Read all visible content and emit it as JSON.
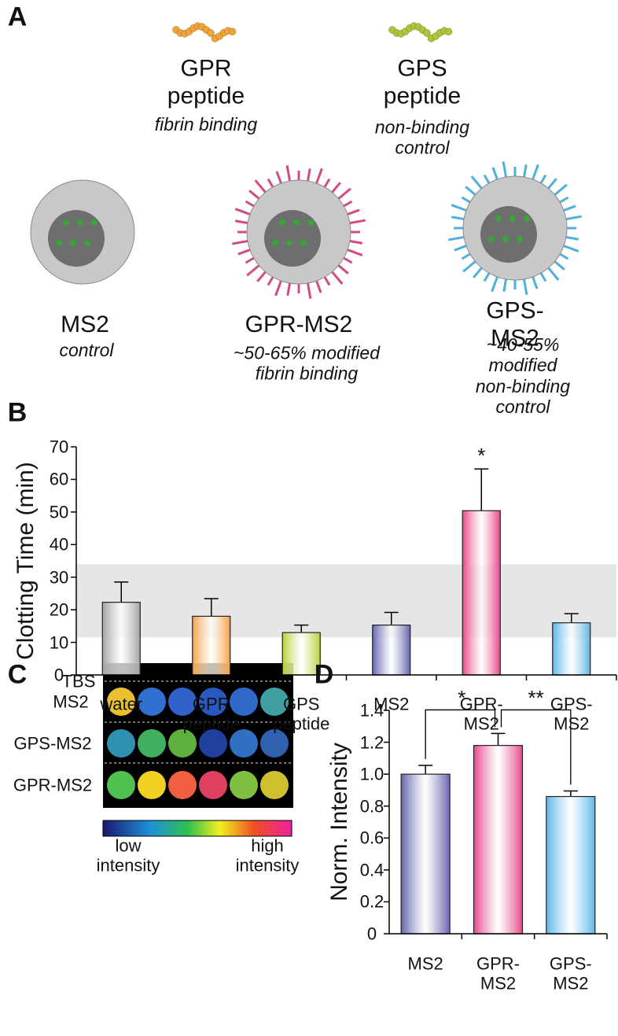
{
  "panel_labels": [
    "A",
    "B",
    "C",
    "D"
  ],
  "peptides": [
    {
      "name": "GPR\npeptide",
      "note": "fibrin binding",
      "color": "#f2a33a"
    },
    {
      "name": "GPS\npeptide",
      "note": "non-binding\ncontrol",
      "color": "#a8c83a"
    }
  ],
  "particles": [
    {
      "name": "MS2",
      "note": "control",
      "color": null
    },
    {
      "name": "GPR-MS2",
      "note": "~50-65% modified\nfibrin binding",
      "color": "#d24a86"
    },
    {
      "name": "GPS-MS2",
      "note": "~40-55% modified\nnon-binding\ncontrol",
      "color": "#4fb0dc"
    }
  ],
  "imaging": {
    "rows": [
      "TBS",
      "MS2",
      "GPS-MS2",
      "GPR-MS2"
    ],
    "scale_low": "low\nintensity",
    "scale_high": "high\nintensity"
  },
  "chart_data": [
    {
      "type": "bar",
      "ylabel": "Clotting Time (min)",
      "categories": [
        "water",
        "GPR\npeptide",
        "GPS\npeptide",
        "MS2",
        "GPR-\nMS2",
        "GPS-\nMS2"
      ],
      "values": [
        22.3,
        18,
        13,
        15.3,
        50.4,
        16
      ],
      "errors": [
        6.2,
        5.4,
        2.3,
        3.9,
        12.8,
        2.8
      ],
      "colors": [
        "#a3a3a3",
        "#f7a347",
        "#b6d33a",
        "#6565ae",
        "#e8488c",
        "#5cb6e8"
      ],
      "significance": [
        null,
        null,
        null,
        null,
        "*",
        null
      ],
      "band": [
        11.5,
        34
      ],
      "ylim": [
        0,
        70
      ],
      "yticks": [
        0,
        10,
        20,
        30,
        40,
        50,
        60,
        70
      ]
    },
    {
      "type": "bar",
      "ylabel": "Norm. Intensity",
      "categories": [
        "MS2",
        "GPR-\nMS2",
        "GPS-\nMS2"
      ],
      "values": [
        1.0,
        1.18,
        0.86
      ],
      "errors": [
        0.055,
        0.075,
        0.035
      ],
      "colors": [
        "#6565ae",
        "#e8488c",
        "#5cb6e8"
      ],
      "brackets": [
        {
          "label": "*"
        },
        {
          "label": "**"
        }
      ],
      "ylim": [
        0,
        1.4
      ],
      "yticks": [
        0,
        {
          "value": 0.2,
          "label": "0.2"
        },
        {
          "value": 0.4,
          "label": "0.4"
        },
        {
          "value": 0.6,
          "label": "0.6"
        },
        {
          "value": 0.8,
          "label": "0.8"
        },
        {
          "value": 1,
          "label": "1.0"
        },
        {
          "value": 1.2,
          "label": "1.2"
        },
        {
          "value": 1.4,
          "label": "1.4"
        }
      ]
    }
  ]
}
